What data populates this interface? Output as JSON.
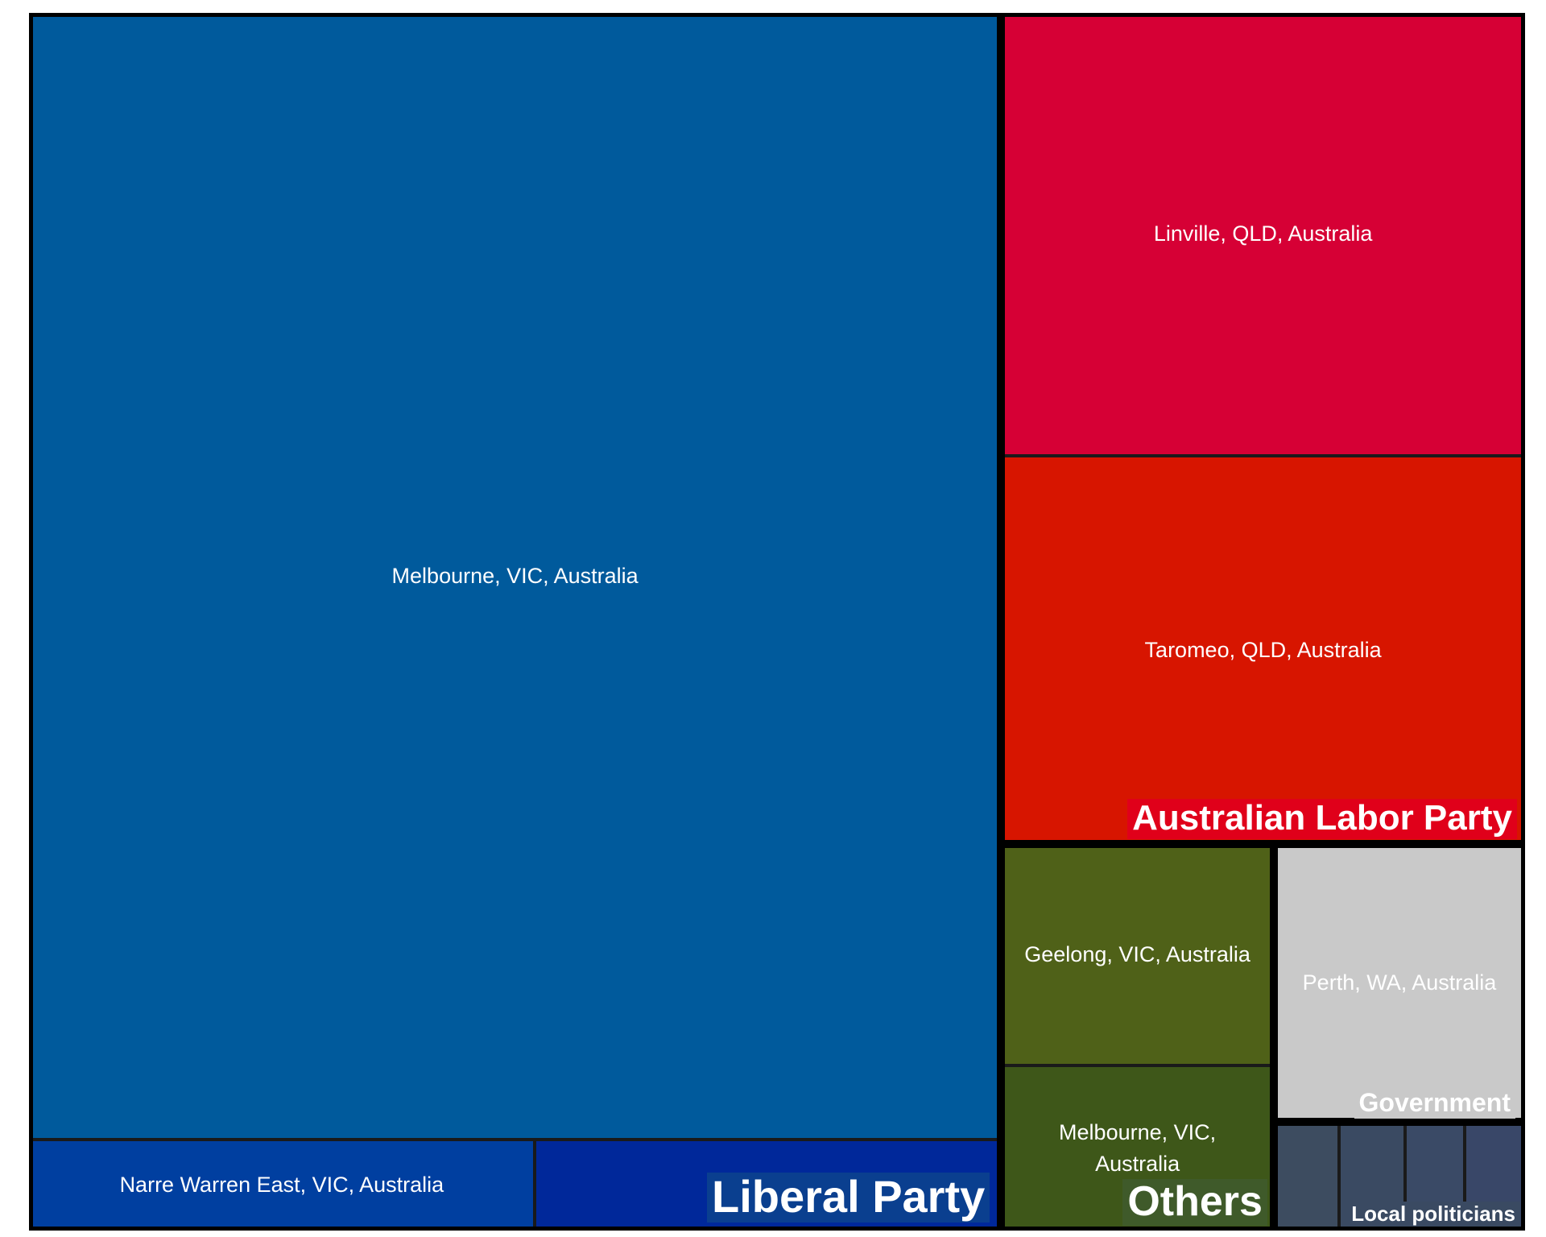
{
  "chart_data": {
    "type": "treemap",
    "title": "",
    "colors": {
      "border": "#000000",
      "label_text": "#ffffff"
    },
    "groups": [
      {
        "name": "Liberal Party",
        "color": "#005a9c",
        "label_bg": "#0a3f8f",
        "value": 100,
        "children": [
          {
            "name": "Melbourne, VIC, Australia",
            "value": 92.5,
            "color": "#005a9c"
          },
          {
            "name": "Narre Warren East, VIC, Australia",
            "value": 3.9,
            "color": "#003fa0"
          },
          {
            "name": "",
            "value": 3.6,
            "color": "#00289a"
          }
        ]
      },
      {
        "name": "Australian Labor Party",
        "color": "#d60035",
        "label_bg": "#e0001a",
        "value": 36.8,
        "children": [
          {
            "name": "Linville, QLD, Australia",
            "value": 19.6,
            "color": "#d60035"
          },
          {
            "name": "Taromeo, QLD, Australia",
            "value": 17.2,
            "color": "#d71500"
          }
        ]
      },
      {
        "name": "Others",
        "color": "#4f6118",
        "label_bg": "#3f5a2a",
        "value": 8.9,
        "children": [
          {
            "name": "Geelong, VIC, Australia",
            "value": 5.1,
            "color": "#4f6118"
          },
          {
            "name": "Melbourne, VIC, Australia",
            "value": 3.8,
            "color": "#3e5719"
          }
        ]
      },
      {
        "name": "Government",
        "color": "#c9c9c9",
        "label_bg": "#c9c9c9",
        "value": 5.9,
        "children": [
          {
            "name": "Perth, WA, Australia",
            "value": 5.9,
            "color": "#c9c9c9"
          }
        ]
      },
      {
        "name": "Local politicians",
        "color": "#3a4a62",
        "label_bg": "#3a4a62",
        "value": 2.3,
        "children": [
          {
            "name": "",
            "value": 0.6,
            "color": "#3d4c60"
          },
          {
            "name": "",
            "value": 0.6,
            "color": "#3a4a62"
          },
          {
            "name": "",
            "value": 0.55,
            "color": "#3a4a66"
          },
          {
            "name": "",
            "value": 0.55,
            "color": "#394768"
          }
        ]
      }
    ]
  }
}
